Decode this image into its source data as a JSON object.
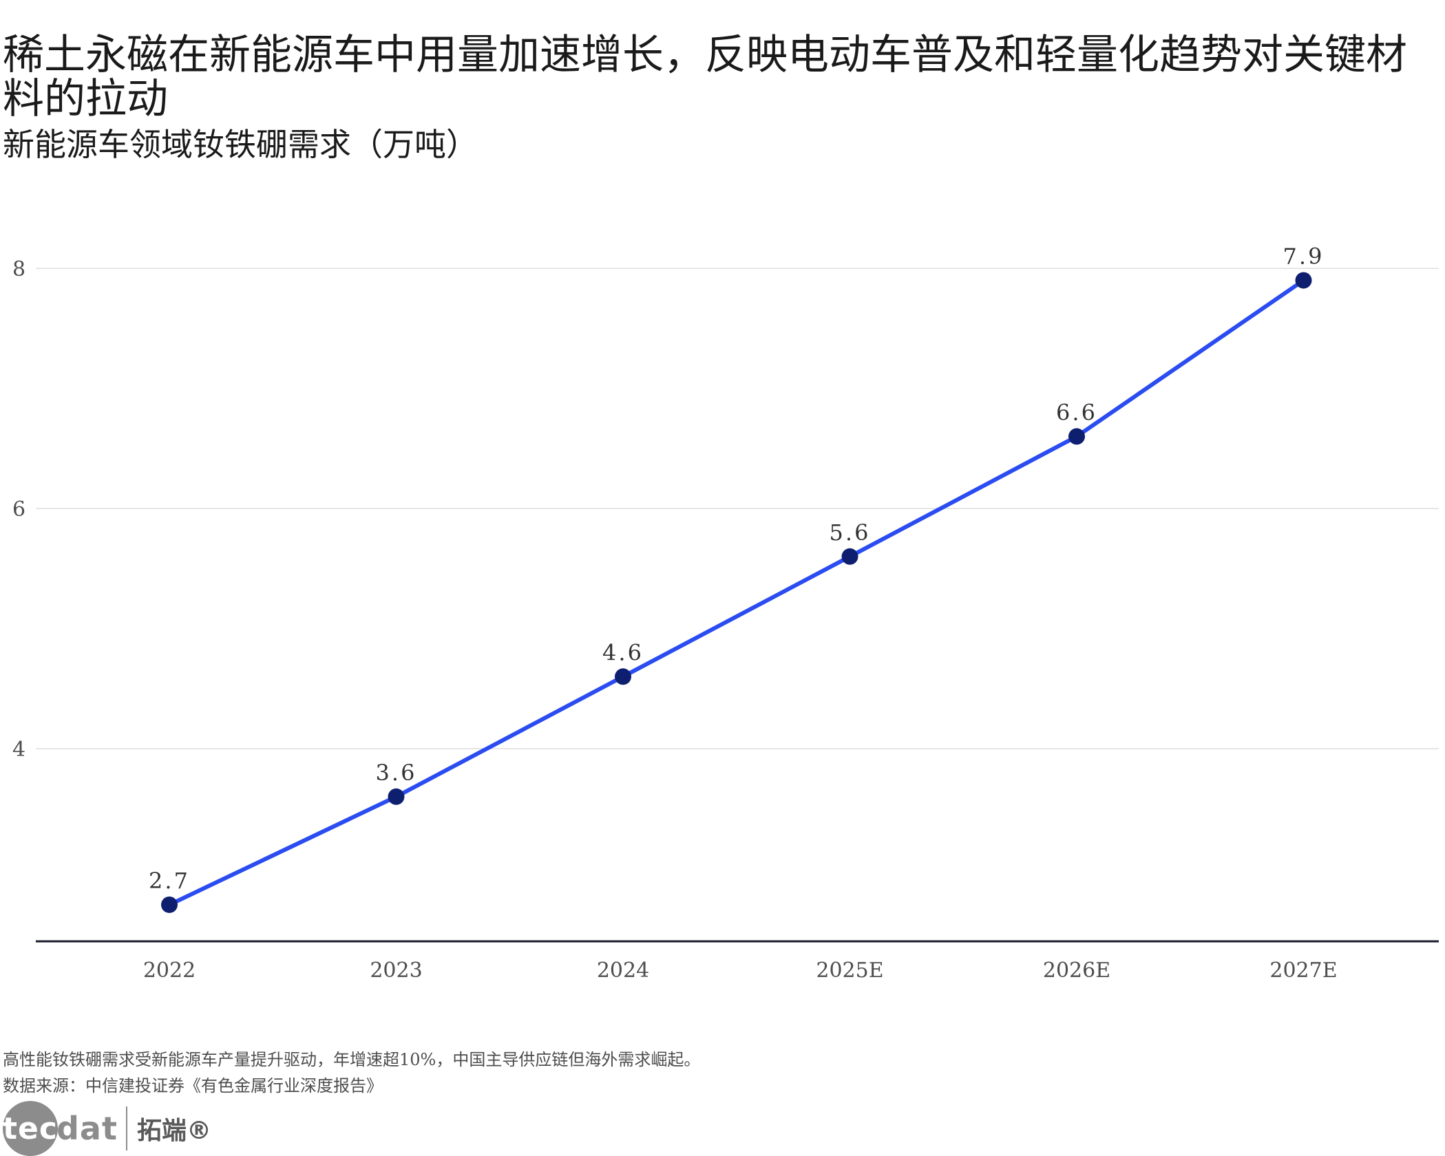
{
  "title": "稀土永磁在新能源车中用量加速增长，反映电动车普及和轻量化趋势对关键材料的拉动",
  "subtitle": "新能源车领域钕铁硼需求（万吨）",
  "note": "高性能钕铁硼需求受新能源车产量提升驱动，年增速超10%，中国主导供应链但海外需求崛起。",
  "source": "数据来源：中信建投证券《有色金属行业深度报告》",
  "logo": {
    "mark_circle": "tec",
    "mark_rest": "dat",
    "cn": "拓端®"
  },
  "chart_data": {
    "type": "line",
    "categories": [
      "2022",
      "2023",
      "2024",
      "2025E",
      "2026E",
      "2027E"
    ],
    "series": [
      {
        "values": [
          2.7,
          3.6,
          4.6,
          5.6,
          6.6,
          7.9
        ],
        "data_labels": [
          "2.7",
          "3.6",
          "4.6",
          "5.6",
          "6.6",
          "7.9"
        ]
      }
    ],
    "ylim": [
      2.4,
      8.2
    ],
    "yticks": [
      4,
      6,
      8
    ],
    "ytick_labels": [
      "4",
      "6",
      "8"
    ],
    "grid": "horizontal",
    "legend": "none",
    "colors": {
      "line": "#2a4cf0",
      "point": "#0d1f6e",
      "grid": "#e6e6e6",
      "axis": "#1a1a2e"
    }
  }
}
